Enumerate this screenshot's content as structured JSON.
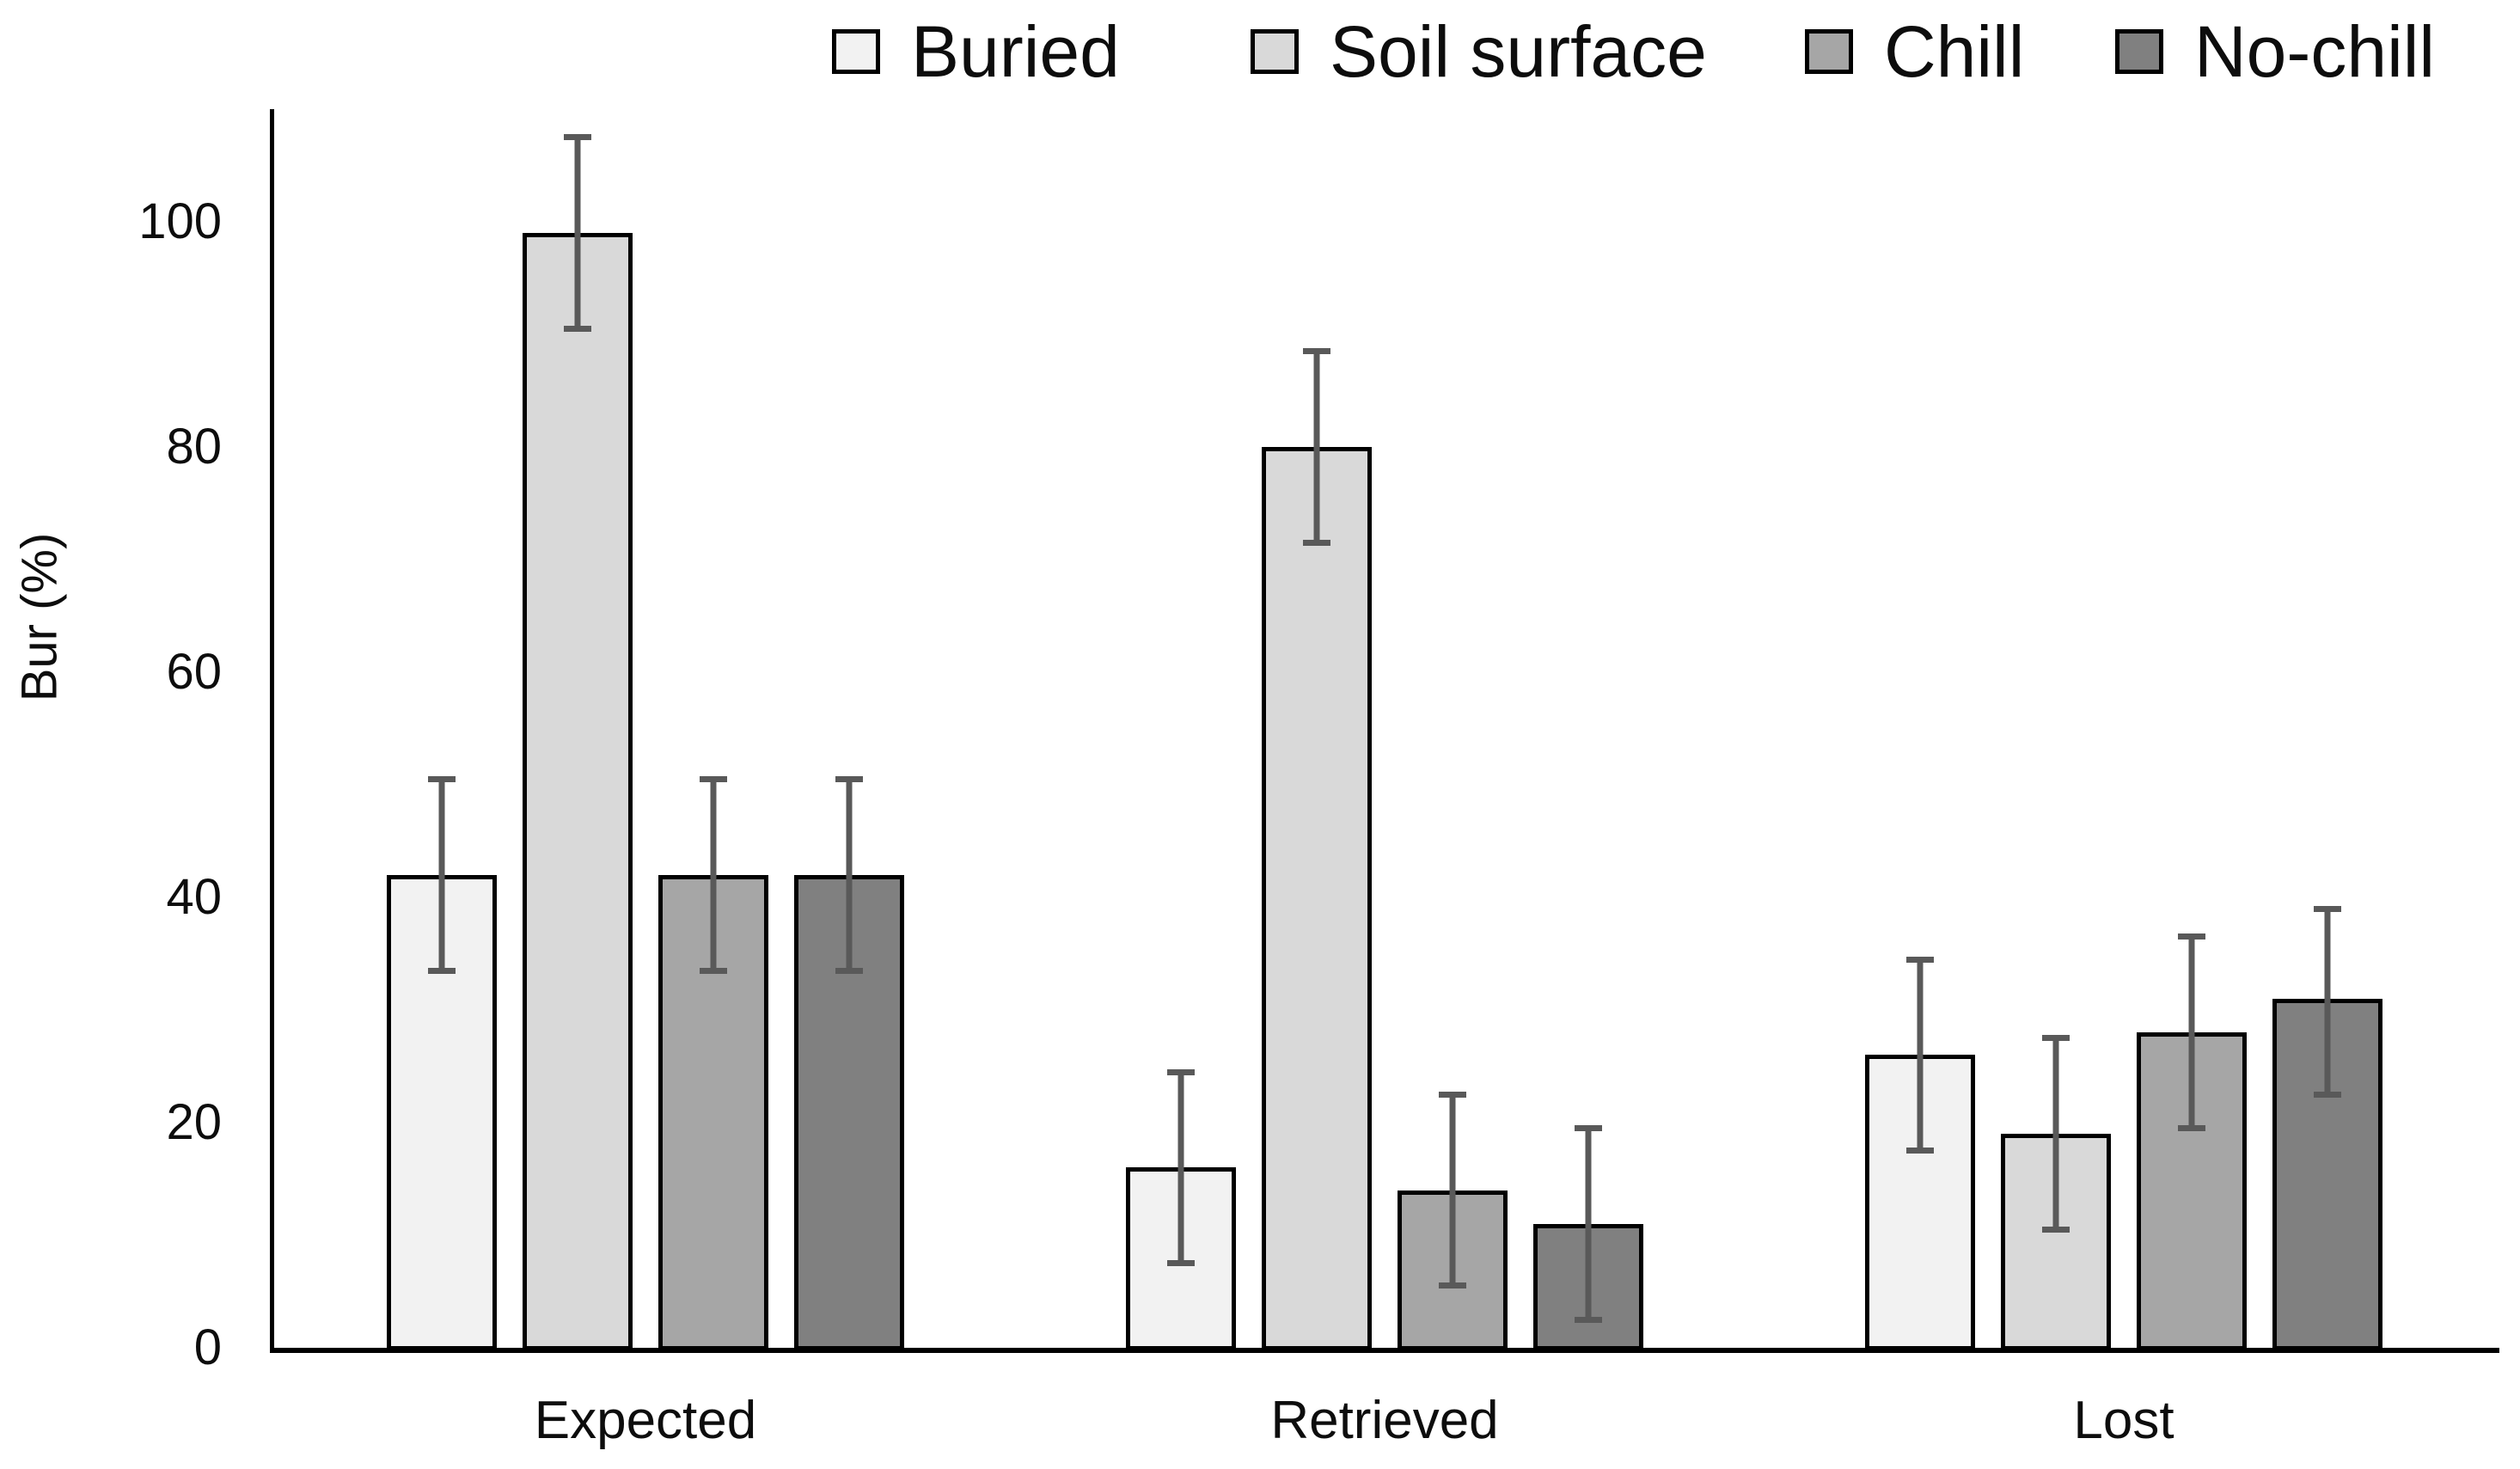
{
  "chart_data": {
    "type": "bar",
    "title": "",
    "xlabel": "",
    "ylabel": "Bur (%)",
    "categories": [
      "Expected",
      "Retrieved",
      "Lost"
    ],
    "series": [
      {
        "name": "Buried",
        "color": "#F2F2F2",
        "values": [
          42,
          16,
          26
        ],
        "err_low": [
          33.5,
          7.5,
          17.5
        ],
        "err_high": [
          50.5,
          24.5,
          34.5
        ]
      },
      {
        "name": "Soil surface",
        "color": "#D9D9D9",
        "values": [
          99,
          80,
          19
        ],
        "err_low": [
          90.5,
          71.5,
          10.5
        ],
        "err_high": [
          107.5,
          88.5,
          27.5
        ]
      },
      {
        "name": "Chill",
        "color": "#A6A6A6",
        "values": [
          42,
          14,
          28
        ],
        "err_low": [
          33.5,
          5.5,
          19.5
        ],
        "err_high": [
          50.5,
          22.5,
          36.5
        ]
      },
      {
        "name": "No-chill",
        "color": "#808080",
        "values": [
          42,
          11,
          31
        ],
        "err_low": [
          33.5,
          2.5,
          22.5
        ],
        "err_high": [
          50.5,
          19.5,
          39
        ]
      }
    ],
    "y_ticks": [
      0,
      20,
      40,
      60,
      80,
      100
    ],
    "ylim": [
      0,
      110
    ],
    "grid": false,
    "legend_position": "top",
    "bar_border_color": "#000000",
    "error_bar_color": "#595959",
    "axis_color": "#000000"
  }
}
